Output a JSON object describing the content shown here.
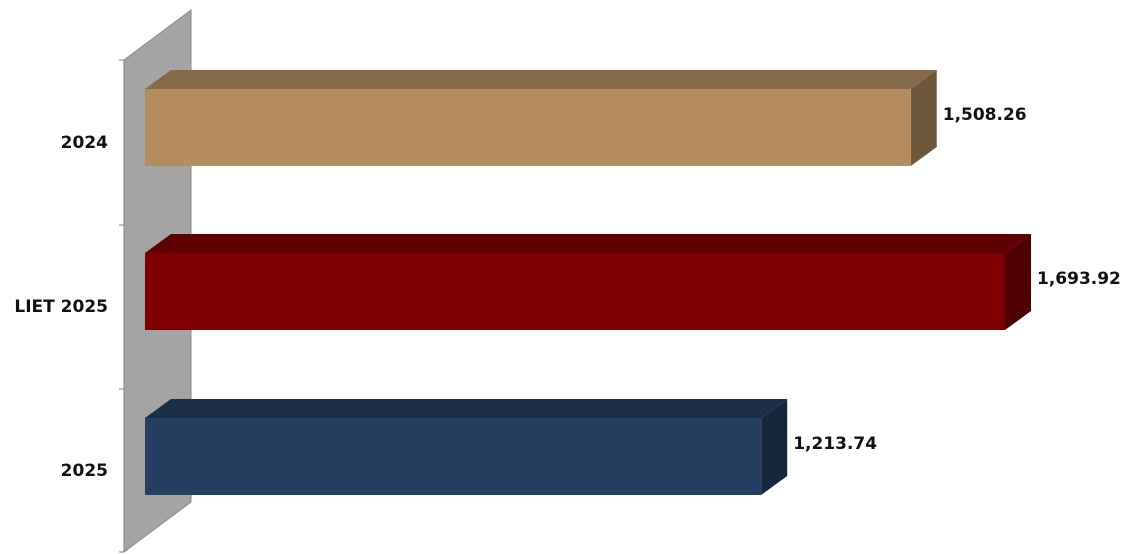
{
  "chart_data": {
    "type": "bar",
    "orientation": "horizontal",
    "style": "3d",
    "categories": [
      "2024",
      "LIET 2025",
      "2025"
    ],
    "values": [
      1508.26,
      1693.92,
      1213.74
    ],
    "value_labels": [
      "1,508.26",
      "1,693.92",
      "1,213.74"
    ],
    "colors": [
      "#B38D5E",
      "#7E0000",
      "#243F62"
    ],
    "title": "",
    "xlabel": "",
    "ylabel": "",
    "xlim": [
      0,
      1693.92
    ],
    "grid": false,
    "legend": "none"
  }
}
